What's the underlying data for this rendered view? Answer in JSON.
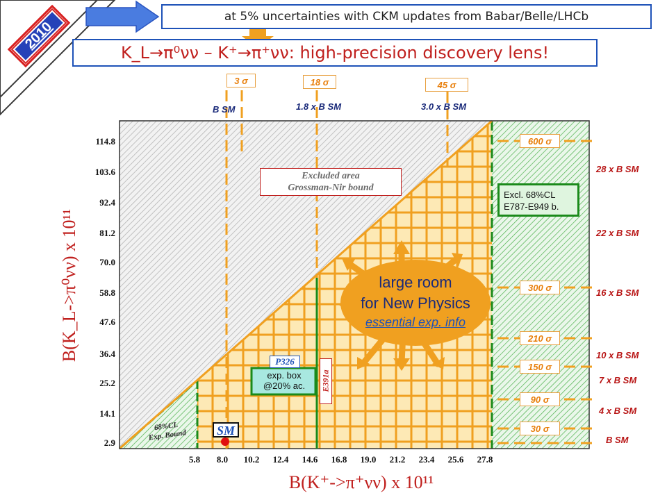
{
  "year_badge": "2010",
  "header_note": "at 5% uncertainties with CKM updates from Babar/Belle/LHCb",
  "title": "K_L→π⁰νν – K⁺→π⁺νν: high-precision discovery lens!",
  "top_sigma": [
    "3 σ",
    "18 σ",
    "45 σ"
  ],
  "top_bsm": [
    "B SM",
    "1.8 x B SM",
    "3.0 x B SM"
  ],
  "right_sigma": [
    "600 σ",
    "300 σ",
    "210 σ",
    "150 σ",
    "90 σ",
    "30 σ"
  ],
  "right_bsm": [
    "28 x B SM",
    "22 x B SM",
    "16 x B SM",
    "10 x B SM",
    "7 x B SM",
    "4 x B SM",
    "B SM"
  ],
  "y_ticks": [
    "114.8",
    "103.6",
    "92.4",
    "81.2",
    "70.0",
    "58.8",
    "47.6",
    "36.4",
    "25.2",
    "14.1",
    "2.9"
  ],
  "x_ticks": [
    "5.8",
    "8.0",
    "10.2",
    "12.4",
    "14.6",
    "16.8",
    "19.0",
    "21.2",
    "23.4",
    "25.6",
    "27.8"
  ],
  "y_axis_label": "B(K_L->π⁰νν) x 10¹¹",
  "x_axis_label": "B(K⁺->π⁺νν) x 10¹¹",
  "labels": {
    "excluded_line1": "Excluded area",
    "excluded_line2": "Grossman-Nir bound",
    "excl_cl_line1": "Excl.  68%CL",
    "excl_cl_line2": "E787-E949 b.",
    "large_room_1": "large room",
    "large_room_2": "for New Physics",
    "essential": "essential exp. info",
    "p326": "P326",
    "e391a": "E391a",
    "exp_box_1": "exp. box",
    "exp_box_2": "@20% ac.",
    "cl68_1": "68%CL",
    "cl68_2": "Exp. Bound",
    "sm": "SM"
  },
  "colors": {
    "orange": "#f0a020",
    "red": "#c0201e",
    "blue": "#1e52b8",
    "green": "#1a8a1a"
  },
  "chart_data": {
    "type": "scatter",
    "xlabel": "B(K⁺->π⁺νν) x 10¹¹",
    "ylabel": "B(K_L->π⁰νν) x 10¹¹",
    "x_ticks": [
      5.8,
      8.0,
      10.2,
      12.4,
      14.6,
      16.8,
      19.0,
      21.2,
      23.4,
      25.6,
      27.8
    ],
    "y_ticks": [
      2.9,
      14.1,
      25.2,
      36.4,
      47.6,
      58.8,
      70.0,
      81.2,
      92.4,
      103.6,
      114.8
    ],
    "points": [
      {
        "label": "SM",
        "x": 8.0,
        "y": 2.9
      }
    ]
  }
}
